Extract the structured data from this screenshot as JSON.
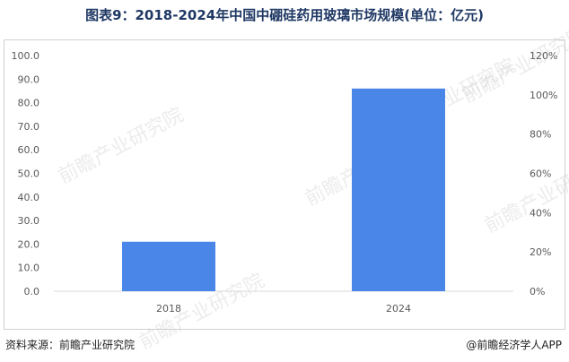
{
  "title": "图表9：2018-2024年中国中硼硅药用玻璃市场规模(单位：亿元)",
  "footer": {
    "source": "资料来源：前瞻产业研究院",
    "brand": "@前瞻经济学人APP"
  },
  "watermark": "前瞻产业研究院",
  "colors": {
    "bar": "#4a86e8",
    "grid": "#e0e0e0",
    "axis_text": "#595959"
  },
  "chart_data": {
    "type": "bar",
    "categories": [
      "2018",
      "2024"
    ],
    "values": [
      21,
      86
    ],
    "y_ticks": [
      "0.0",
      "10.0",
      "20.0",
      "30.0",
      "40.0",
      "50.0",
      "60.0",
      "70.0",
      "80.0",
      "90.0",
      "100.0"
    ],
    "y2_ticks": [
      "0%",
      "20%",
      "40%",
      "60%",
      "80%",
      "100%",
      "120%"
    ],
    "ylim": [
      0,
      100
    ],
    "y2lim": [
      0,
      120
    ],
    "grid": false,
    "legend": "none"
  }
}
